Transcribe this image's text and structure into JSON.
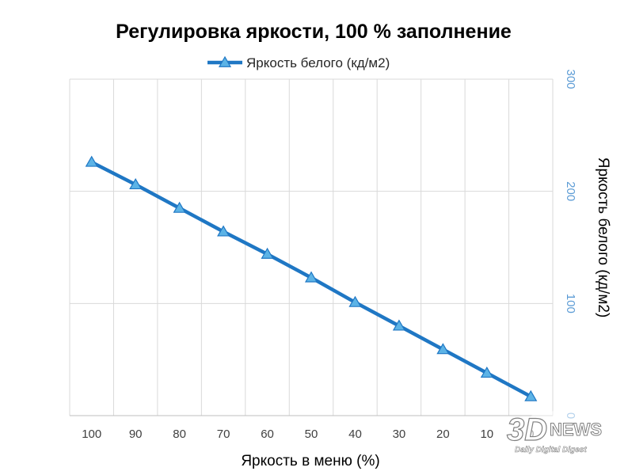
{
  "chart_data": {
    "type": "line",
    "title": "Регулировка яркости, 100 % заполнение",
    "xlabel": "Яркость в меню (%)",
    "ylabel": "Яркость белого (кд/м2)",
    "categories": [
      "100",
      "90",
      "80",
      "70",
      "60",
      "50",
      "40",
      "30",
      "20",
      "10",
      "0"
    ],
    "series": [
      {
        "name": "Яркость белого (кд/м2)",
        "values": [
          226,
          206,
          185,
          164,
          144,
          123,
          101,
          80,
          59,
          38,
          17
        ],
        "color": "#1f77c4",
        "marker": "triangle"
      }
    ],
    "ylim": [
      0,
      300
    ],
    "yticks": [
      "0",
      "100",
      "200",
      "300"
    ],
    "y_axis_side": "right",
    "grid": "on",
    "legend": "top"
  },
  "watermark": {
    "logo_text": "3D",
    "brand": "NEWS",
    "tagline": "Daily Digital Digest"
  }
}
